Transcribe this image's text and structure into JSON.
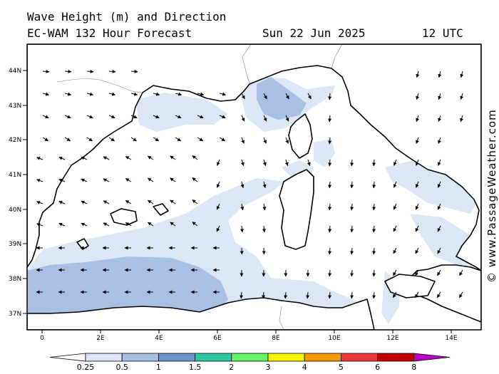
{
  "header": {
    "title_line1": "Wave Height (m) and Direction",
    "title_line2": "EC-WAM 132 Hour Forecast",
    "date": "Sun 22 Jun 2025",
    "time": "12 UTC"
  },
  "map": {
    "lat_labels": [
      "44N",
      "43N",
      "42N",
      "41N",
      "40N",
      "39N",
      "38N",
      "37N"
    ],
    "lon_labels": [
      "0",
      "2E",
      "4E",
      "6E",
      "8E",
      "10E",
      "12E",
      "14E"
    ],
    "lat_range": [
      36.5,
      44.7
    ],
    "lon_range": [
      -0.5,
      15.0
    ],
    "land_color": "#ffffff",
    "coast_color": "#000000"
  },
  "colorbar": {
    "tick_labels": [
      "0.25",
      "0.5",
      "1",
      "1.5",
      "2",
      "3",
      "4",
      "5",
      "6",
      "8"
    ],
    "colors": [
      "#ffffff",
      "#dde6f5",
      "#a8c0e4",
      "#6f95d1",
      "#2ec8a0",
      "#66f566",
      "#f5f500",
      "#f59a00",
      "#f03a3a",
      "#c00000",
      "#c000c0"
    ]
  },
  "credit": "© www.PassageWeather.com"
}
